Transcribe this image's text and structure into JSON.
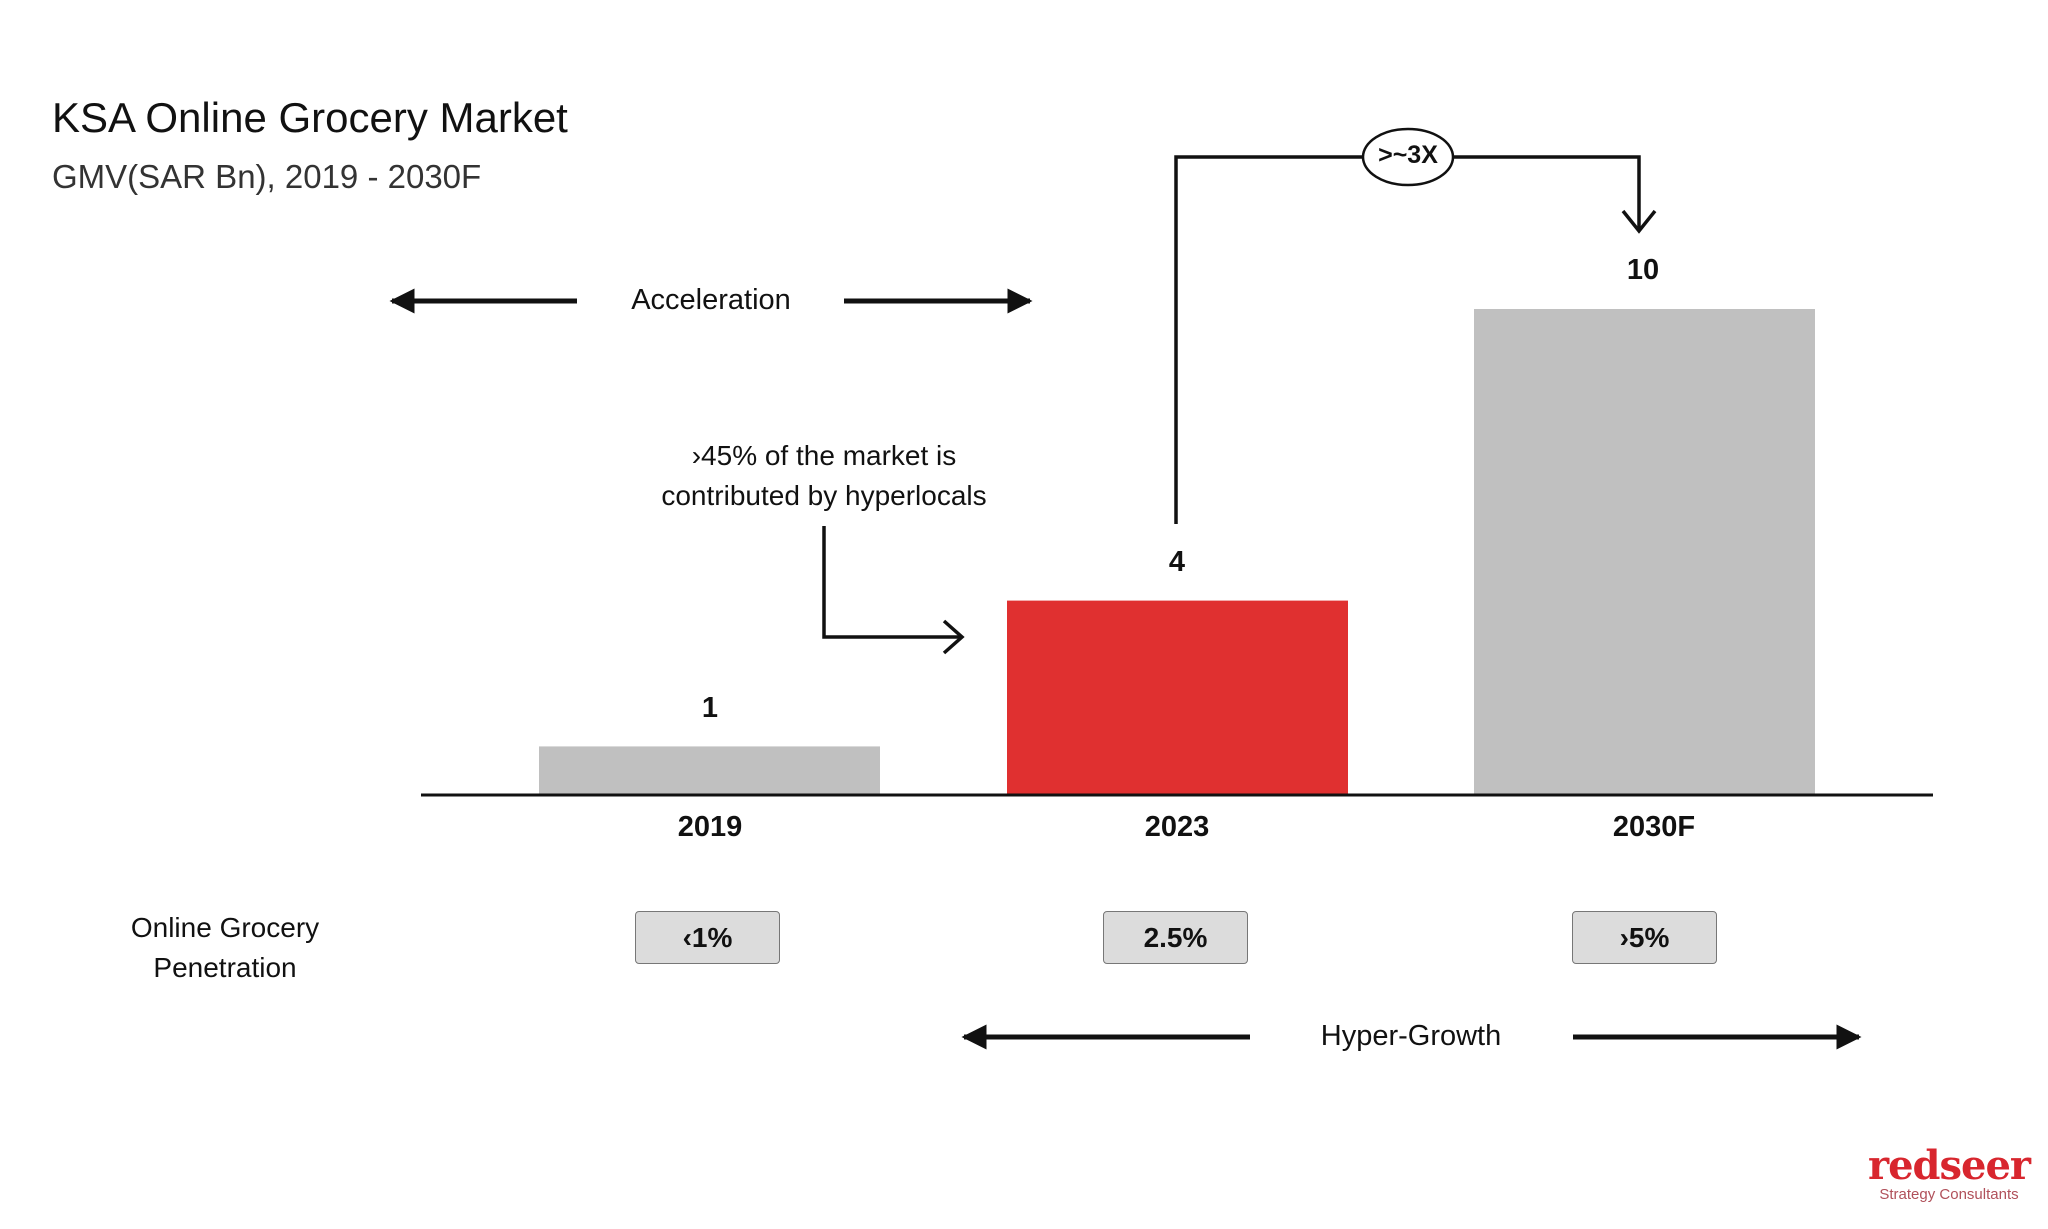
{
  "chart_data": {
    "type": "bar",
    "title": "KSA Online Grocery Market",
    "subtitle": "GMV(SAR Bn), 2019 - 2030F",
    "categories": [
      "2019",
      "2023",
      "2030F"
    ],
    "values": [
      1,
      4,
      10
    ],
    "data_labels": [
      "1",
      "4",
      "10"
    ],
    "colors": [
      "#c0c0c0",
      "#e03030",
      "#c0c0c0"
    ],
    "ylim": [
      0,
      10
    ],
    "grid": false,
    "annotations": {
      "acceleration": "Acceleration",
      "hyper_growth": "Hyper-Growth",
      "growth_multiple": ">~3X",
      "hyperlocal_line1": "›45% of the market is",
      "hyperlocal_line2": "contributed by hyperlocals"
    },
    "penetration": {
      "label_line1": "Online Grocery",
      "label_line2": "Penetration",
      "values": [
        "‹1%",
        "2.5%",
        "›5%"
      ]
    }
  },
  "logo": {
    "wordmark": "redseer",
    "tagline": "Strategy Consultants"
  }
}
